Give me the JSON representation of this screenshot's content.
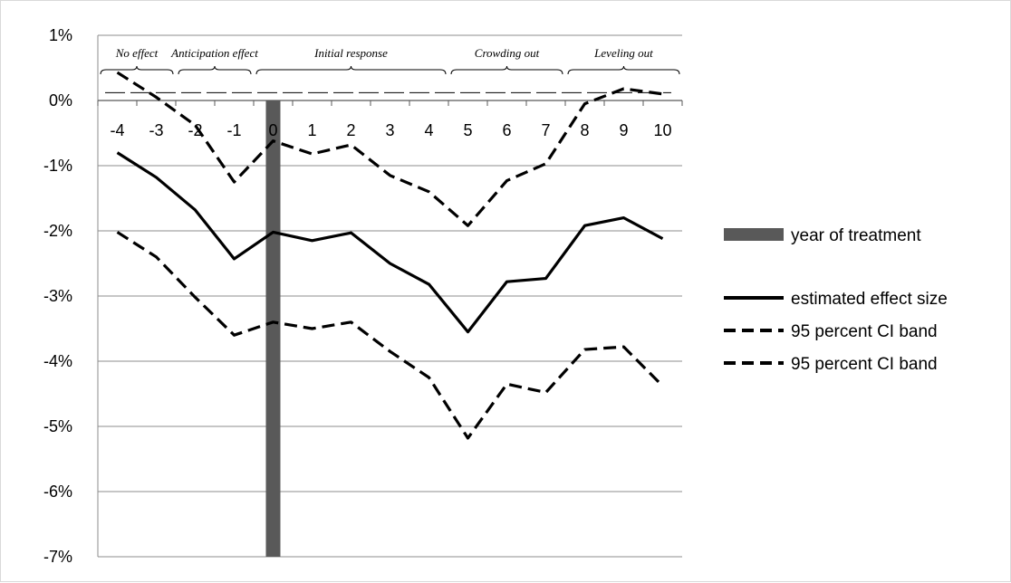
{
  "chart_data": {
    "type": "line",
    "title": "",
    "xlabel": "",
    "ylabel": "",
    "x": [
      -4,
      -3,
      -2,
      -1,
      0,
      1,
      2,
      3,
      4,
      5,
      6,
      7,
      8,
      9,
      10
    ],
    "x_tick_labels": [
      "-4",
      "-3",
      "-2",
      "-1",
      "0",
      "1",
      "2",
      "3",
      "4",
      "5",
      "6",
      "7",
      "8",
      "9",
      "10"
    ],
    "ylim": [
      -7,
      1
    ],
    "y_ticks": [
      1,
      0,
      -1,
      -2,
      -3,
      -4,
      -5,
      -6,
      -7
    ],
    "y_tick_labels": [
      "1%",
      "0%",
      "-1%",
      "-2%",
      "-3%",
      "-4%",
      "-5%",
      "-6%",
      "-7%"
    ],
    "grid": "horizontal",
    "legend_position": "right",
    "treatment": {
      "name": "year of treatment",
      "x": 0,
      "color": "#595959"
    },
    "series": [
      {
        "name": "estimated effect size",
        "style": "solid",
        "color": "#000000",
        "values": [
          -0.8,
          -1.18,
          -1.68,
          -2.43,
          -2.02,
          -2.15,
          -2.03,
          -2.5,
          -2.82,
          -3.55,
          -2.78,
          -2.73,
          -1.92,
          -1.8,
          -2.12
        ]
      },
      {
        "name": "95 percent CI band",
        "style": "dashed",
        "color": "#000000",
        "values": [
          0.43,
          0.05,
          -0.38,
          -1.25,
          -0.62,
          -0.82,
          -0.68,
          -1.15,
          -1.4,
          -1.92,
          -1.23,
          -0.97,
          -0.05,
          0.18,
          0.1
        ]
      },
      {
        "name": "95 percent CI band",
        "style": "dashed",
        "color": "#000000",
        "values": [
          -2.02,
          -2.4,
          -3.02,
          -3.6,
          -3.4,
          -3.5,
          -3.4,
          -3.85,
          -4.25,
          -5.18,
          -4.35,
          -4.48,
          -3.82,
          -3.78,
          -4.38
        ]
      }
    ],
    "annotations": {
      "phases": [
        {
          "label": "No effect",
          "from": -4,
          "to": -3
        },
        {
          "label": "Anticipation effect",
          "from": -2,
          "to": -1
        },
        {
          "label": "Initial response",
          "from": 0,
          "to": 4
        },
        {
          "label": "Crowding out",
          "from": 5,
          "to": 7
        },
        {
          "label": "Leveling out",
          "from": 8,
          "to": 10
        }
      ],
      "reference_line_y": 0.12
    }
  }
}
